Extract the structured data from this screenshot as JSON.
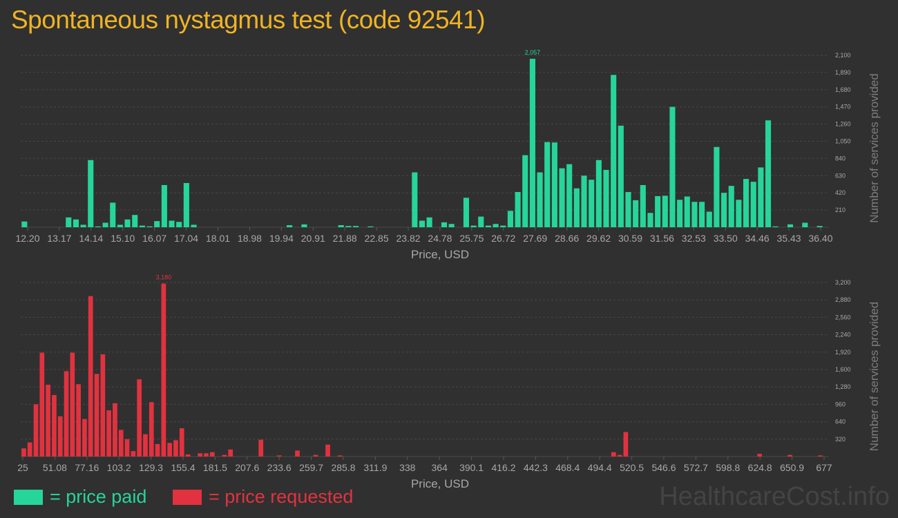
{
  "title": "Spontaneous nystagmus test (code 92541)",
  "watermark": "HealthcareCost.info",
  "legend": [
    {
      "label": "= price paid",
      "color": "#26d59a"
    },
    {
      "label": "= price requested",
      "color": "#e2323f"
    }
  ],
  "chart_data": [
    {
      "type": "bar",
      "color": "#26d59a",
      "xlabel": "Price, USD",
      "ylabel": "Number of services provided",
      "xlim": [
        12.2,
        36.4
      ],
      "ylim": [
        0,
        2100
      ],
      "x_ticks": [
        "12.20",
        "13.17",
        "14.14",
        "15.10",
        "16.07",
        "17.04",
        "18.01",
        "18.98",
        "19.94",
        "20.91",
        "21.88",
        "22.85",
        "23.82",
        "24.78",
        "25.75",
        "26.72",
        "27.69",
        "28.66",
        "29.62",
        "30.59",
        "31.56",
        "32.53",
        "33.50",
        "34.46",
        "35.43",
        "36.40"
      ],
      "y_ticks": [
        "210",
        "420",
        "630",
        "840",
        "1,050",
        "1,260",
        "1,470",
        "1,680",
        "1,890",
        "2,100"
      ],
      "peak_label": "2,057",
      "values": [
        70,
        0,
        0,
        0,
        0,
        0,
        120,
        95,
        30,
        820,
        10,
        55,
        300,
        30,
        95,
        150,
        20,
        10,
        75,
        515,
        80,
        65,
        540,
        30,
        0,
        0,
        0,
        0,
        0,
        0,
        0,
        0,
        0,
        0,
        0,
        0,
        25,
        0,
        35,
        0,
        0,
        0,
        0,
        25,
        15,
        15,
        0,
        10,
        0,
        0,
        0,
        0,
        0,
        670,
        80,
        120,
        0,
        60,
        40,
        0,
        360,
        20,
        130,
        20,
        40,
        20,
        200,
        430,
        880,
        2057,
        670,
        1040,
        1035,
        720,
        770,
        475,
        630,
        580,
        820,
        700,
        1860,
        1240,
        430,
        330,
        515,
        175,
        380,
        385,
        1470,
        335,
        375,
        310,
        310,
        190,
        980,
        420,
        505,
        335,
        590,
        555,
        730,
        1305,
        10,
        0,
        35,
        0,
        55,
        0,
        15
      ]
    },
    {
      "type": "bar",
      "color": "#e2323f",
      "xlabel": "Price, USD",
      "ylabel": "Number of services provided",
      "xlim": [
        25,
        677
      ],
      "ylim": [
        0,
        3200
      ],
      "x_ticks": [
        "25",
        "51.08",
        "77.16",
        "103.2",
        "129.3",
        "155.4",
        "181.5",
        "207.6",
        "233.6",
        "259.7",
        "285.8",
        "311.9",
        "338",
        "364",
        "390.1",
        "416.2",
        "442.3",
        "468.4",
        "494.4",
        "520.5",
        "546.6",
        "572.7",
        "598.8",
        "624.8",
        "650.9",
        "677"
      ],
      "y_ticks": [
        "320",
        "640",
        "960",
        "1,280",
        "1,600",
        "1,920",
        "2,240",
        "2,560",
        "2,880",
        "3,200"
      ],
      "peak_label": "3,180",
      "values": [
        150,
        260,
        960,
        1910,
        1320,
        1130,
        740,
        1570,
        1910,
        1330,
        690,
        2950,
        1520,
        1880,
        850,
        980,
        490,
        320,
        100,
        1420,
        410,
        1000,
        230,
        3180,
        250,
        300,
        520,
        40,
        0,
        60,
        60,
        80,
        0,
        30,
        130,
        0,
        0,
        0,
        0,
        310,
        0,
        0,
        20,
        0,
        0,
        110,
        0,
        0,
        30,
        0,
        220,
        0,
        20,
        0,
        0,
        0,
        0,
        0,
        0,
        0,
        0,
        0,
        0,
        0,
        0,
        0,
        0,
        0,
        0,
        0,
        0,
        0,
        0,
        0,
        0,
        0,
        0,
        0,
        0,
        0,
        0,
        0,
        0,
        0,
        0,
        0,
        0,
        0,
        0,
        0,
        0,
        0,
        0,
        0,
        0,
        0,
        0,
        80,
        30,
        450,
        0,
        0,
        0,
        0,
        0,
        0,
        0,
        0,
        0,
        0,
        0,
        0,
        0,
        0,
        0,
        0,
        0,
        0,
        0,
        0,
        0,
        50,
        0,
        0,
        0,
        0,
        30,
        0,
        0,
        0,
        0,
        20
      ]
    }
  ]
}
